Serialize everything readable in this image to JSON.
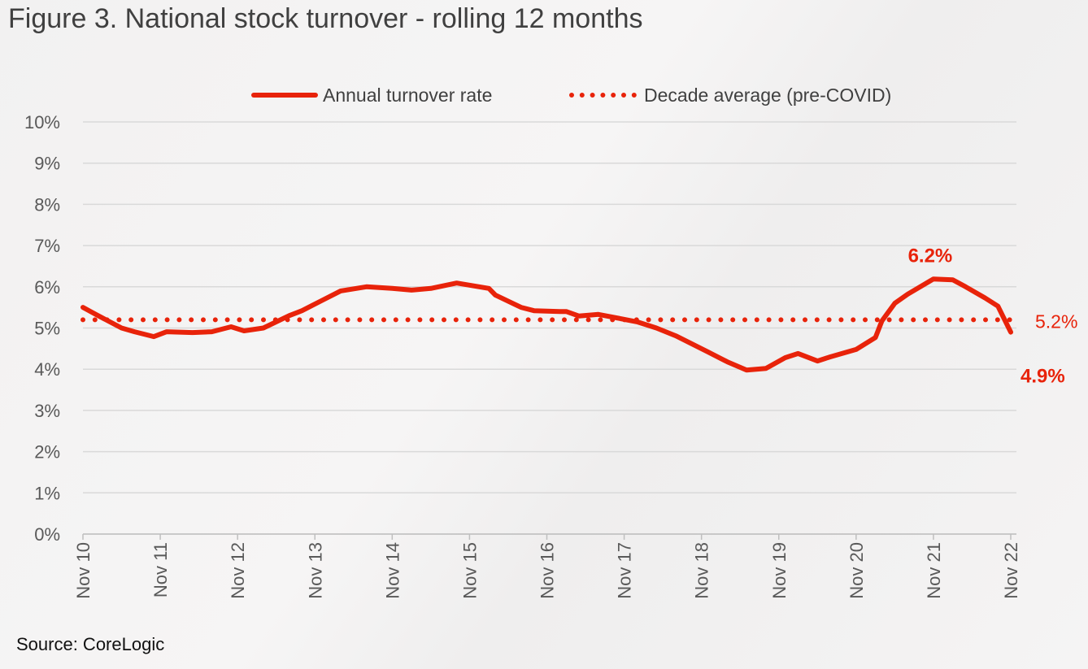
{
  "chart_data": {
    "type": "line",
    "title": "Figure 3. National stock turnover - rolling 12 months",
    "source": "Source: CoreLogic",
    "xlabel": "",
    "ylabel": "",
    "ylim": [
      0,
      10
    ],
    "yticks": [
      "0%",
      "1%",
      "2%",
      "3%",
      "4%",
      "5%",
      "6%",
      "7%",
      "8%",
      "9%",
      "10%"
    ],
    "xticks": [
      "Nov 10",
      "Nov 11",
      "Nov 12",
      "Nov 13",
      "Nov 14",
      "Nov 15",
      "Nov 16",
      "Nov 17",
      "Nov 18",
      "Nov 19",
      "Nov 20",
      "Nov 21",
      "Nov 22"
    ],
    "grid": true,
    "legend_position": "top",
    "colors": {
      "series": "#e8230a",
      "average": "#e8230a",
      "grid": "#d9d9d9"
    },
    "series": [
      {
        "name": "Annual turnover rate",
        "style": "solid",
        "points": [
          [
            "2010-11",
            5.5
          ],
          [
            "2011-01",
            5.33
          ],
          [
            "2011-05",
            5.0
          ],
          [
            "2011-07",
            4.91
          ],
          [
            "2011-10",
            4.79
          ],
          [
            "2011-12",
            4.91
          ],
          [
            "2012-04",
            4.89
          ],
          [
            "2012-07",
            4.91
          ],
          [
            "2012-10",
            5.03
          ],
          [
            "2012-12",
            4.93
          ],
          [
            "2013-03",
            5.0
          ],
          [
            "2013-07",
            5.3
          ],
          [
            "2013-09",
            5.42
          ],
          [
            "2013-12",
            5.66
          ],
          [
            "2014-03",
            5.9
          ],
          [
            "2014-07",
            6.0
          ],
          [
            "2014-11",
            5.96
          ],
          [
            "2015-02",
            5.92
          ],
          [
            "2015-05",
            5.96
          ],
          [
            "2015-09",
            6.09
          ],
          [
            "2016-02",
            5.96
          ],
          [
            "2016-03",
            5.8
          ],
          [
            "2016-07",
            5.5
          ],
          [
            "2016-09",
            5.42
          ],
          [
            "2017-01",
            5.4
          ],
          [
            "2017-02",
            5.4
          ],
          [
            "2017-04",
            5.29
          ],
          [
            "2017-07",
            5.33
          ],
          [
            "2018-01",
            5.15
          ],
          [
            "2018-04",
            5.0
          ],
          [
            "2018-07",
            4.81
          ],
          [
            "2018-12",
            4.42
          ],
          [
            "2019-03",
            4.18
          ],
          [
            "2019-06",
            3.98
          ],
          [
            "2019-09",
            4.02
          ],
          [
            "2019-12",
            4.28
          ],
          [
            "2020-02",
            4.38
          ],
          [
            "2020-05",
            4.2
          ],
          [
            "2020-07",
            4.3
          ],
          [
            "2020-11",
            4.48
          ],
          [
            "2021-02",
            4.77
          ],
          [
            "2021-03",
            5.17
          ],
          [
            "2021-05",
            5.6
          ],
          [
            "2021-07",
            5.82
          ],
          [
            "2021-11",
            6.19
          ],
          [
            "2022-02",
            6.17
          ],
          [
            "2022-04",
            6.0
          ],
          [
            "2022-07",
            5.73
          ],
          [
            "2022-09",
            5.53
          ],
          [
            "2022-11",
            4.9
          ]
        ]
      },
      {
        "name": "Decade average (pre-COVID)",
        "style": "dotted",
        "value": 5.2
      }
    ],
    "annotations": [
      {
        "text": "6.2%",
        "x": "2021-11",
        "y": 6.2,
        "bold": true
      },
      {
        "text": "4.9%",
        "x": "2022-11",
        "y": 4.9,
        "bold": true
      },
      {
        "text": "5.2%",
        "x": "2022-11",
        "y": 5.2,
        "bold": false
      }
    ]
  }
}
